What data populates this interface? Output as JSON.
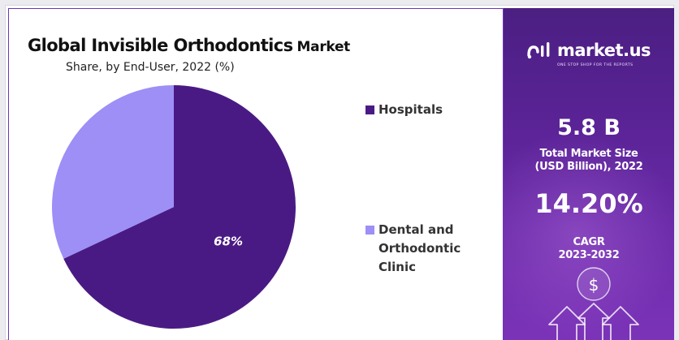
{
  "chart_data": {
    "type": "pie",
    "title": "Global Invisible Orthodontics",
    "title_suffix": "Market",
    "subtitle": "Share, by End-User, 2022 (%)",
    "slices": [
      {
        "label": "Hospitals",
        "value": 68,
        "data_label": "68%",
        "color": "#4a1a84"
      },
      {
        "label": "Dental and\nOrthodontic\nClinic",
        "value": 32,
        "data_label": "",
        "color": "#9d8ff6"
      }
    ],
    "start_angle_deg": 0,
    "direction": "clockwise",
    "legend_placement": "right"
  },
  "brand": {
    "name": "market.us",
    "tagline": "ONE STOP SHOP FOR THE REPORTS"
  },
  "stats": {
    "market_size_value": "5.8 B",
    "market_size_label": "Total Market Size\n(USD Billion), 2022",
    "cagr_value": "14.20%",
    "cagr_label": "CAGR\n2023-2032"
  },
  "decor": {
    "dollar_symbol": "$",
    "icon": "dollar-growth-arrows-icon"
  }
}
